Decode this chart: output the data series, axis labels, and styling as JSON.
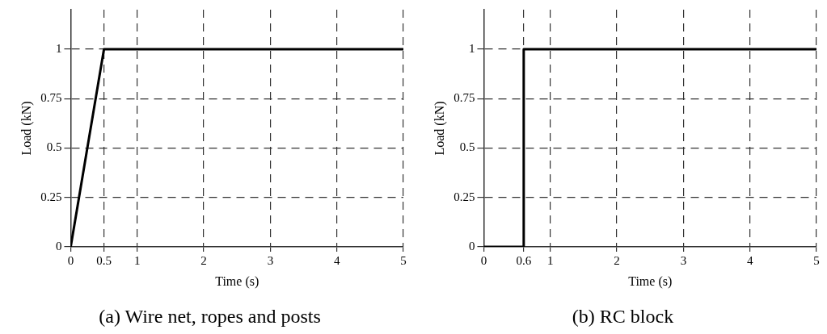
{
  "chart_data": [
    {
      "type": "line",
      "title": "(a) Wire net, ropes and posts",
      "xlabel": "Time (s)",
      "ylabel": "Load (kN)",
      "series": [
        {
          "color": "#000000",
          "x": [
            0,
            0.5,
            5
          ],
          "values": [
            0,
            1,
            1
          ]
        }
      ],
      "xlim": [
        0,
        5
      ],
      "xticks": [
        0,
        0.5,
        1,
        2,
        3,
        4,
        5
      ],
      "ylim": [
        0,
        1.2
      ],
      "yticks": [
        0,
        0.25,
        0.5,
        0.75,
        1
      ],
      "grid": true,
      "line_style": "solid",
      "marker": "none",
      "legend": false
    },
    {
      "type": "line",
      "title": "(b) RC block",
      "xlabel": "Time (s)",
      "ylabel": "Load (kN)",
      "series": [
        {
          "color": "#000000",
          "x": [
            0,
            0.6,
            0.6,
            5
          ],
          "values": [
            0,
            0,
            1,
            1
          ]
        }
      ],
      "xlim": [
        0,
        5
      ],
      "xticks": [
        0,
        0.6,
        1,
        2,
        3,
        4,
        5
      ],
      "ylim": [
        0,
        1.2
      ],
      "yticks": [
        0,
        0.25,
        0.5,
        0.75,
        1
      ],
      "grid": true,
      "line_style": "solid",
      "marker": "none",
      "legend": false
    }
  ]
}
